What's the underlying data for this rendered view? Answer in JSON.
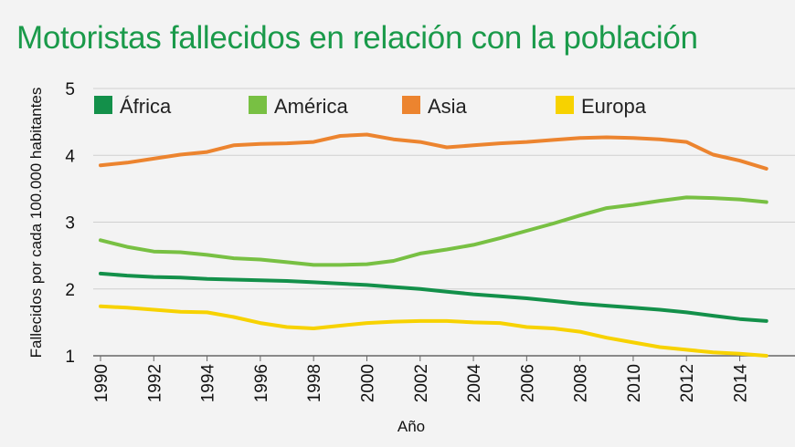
{
  "chart_data": {
    "type": "line",
    "title": "Motoristas fallecidos en relación con la población",
    "xlabel": "Año",
    "ylabel": "Fallecidos por cada 100.000 habitantes",
    "x": [
      1990,
      1991,
      1992,
      1993,
      1994,
      1995,
      1996,
      1997,
      1998,
      1999,
      2000,
      2001,
      2002,
      2003,
      2004,
      2005,
      2006,
      2007,
      2008,
      2009,
      2010,
      2011,
      2012,
      2013,
      2014,
      2015
    ],
    "xticks": [
      "1990",
      "1992",
      "1994",
      "1996",
      "1998",
      "2000",
      "2002",
      "2004",
      "2006",
      "2008",
      "2010",
      "2012",
      "2014"
    ],
    "yticks": [
      "1",
      "2",
      "3",
      "4",
      "5"
    ],
    "ylim": [
      1,
      5
    ],
    "grid": "horizontal",
    "legend_position": "top",
    "series": [
      {
        "name": "África",
        "color": "#13904a",
        "values": [
          2.23,
          2.2,
          2.18,
          2.17,
          2.15,
          2.14,
          2.13,
          2.12,
          2.1,
          2.08,
          2.06,
          2.03,
          2.0,
          1.96,
          1.92,
          1.89,
          1.86,
          1.82,
          1.78,
          1.75,
          1.72,
          1.69,
          1.65,
          1.6,
          1.55,
          1.52
        ]
      },
      {
        "name": "América",
        "color": "#78c043",
        "values": [
          2.73,
          2.63,
          2.56,
          2.55,
          2.51,
          2.46,
          2.44,
          2.4,
          2.36,
          2.36,
          2.37,
          2.42,
          2.53,
          2.59,
          2.66,
          2.76,
          2.87,
          2.98,
          3.1,
          3.21,
          3.26,
          3.32,
          3.37,
          3.36,
          3.34,
          3.3
        ]
      },
      {
        "name": "Asia",
        "color": "#ec842f",
        "values": [
          3.85,
          3.89,
          3.95,
          4.01,
          4.05,
          4.15,
          4.17,
          4.18,
          4.2,
          4.29,
          4.31,
          4.24,
          4.2,
          4.12,
          4.15,
          4.18,
          4.2,
          4.23,
          4.26,
          4.27,
          4.26,
          4.24,
          4.2,
          4.01,
          3.92,
          3.8
        ]
      },
      {
        "name": "Europa",
        "color": "#f7d200",
        "values": [
          1.74,
          1.72,
          1.69,
          1.66,
          1.65,
          1.58,
          1.49,
          1.43,
          1.41,
          1.45,
          1.49,
          1.51,
          1.52,
          1.52,
          1.5,
          1.49,
          1.43,
          1.41,
          1.36,
          1.27,
          1.2,
          1.13,
          1.09,
          1.05,
          1.03,
          1.0
        ]
      }
    ]
  }
}
